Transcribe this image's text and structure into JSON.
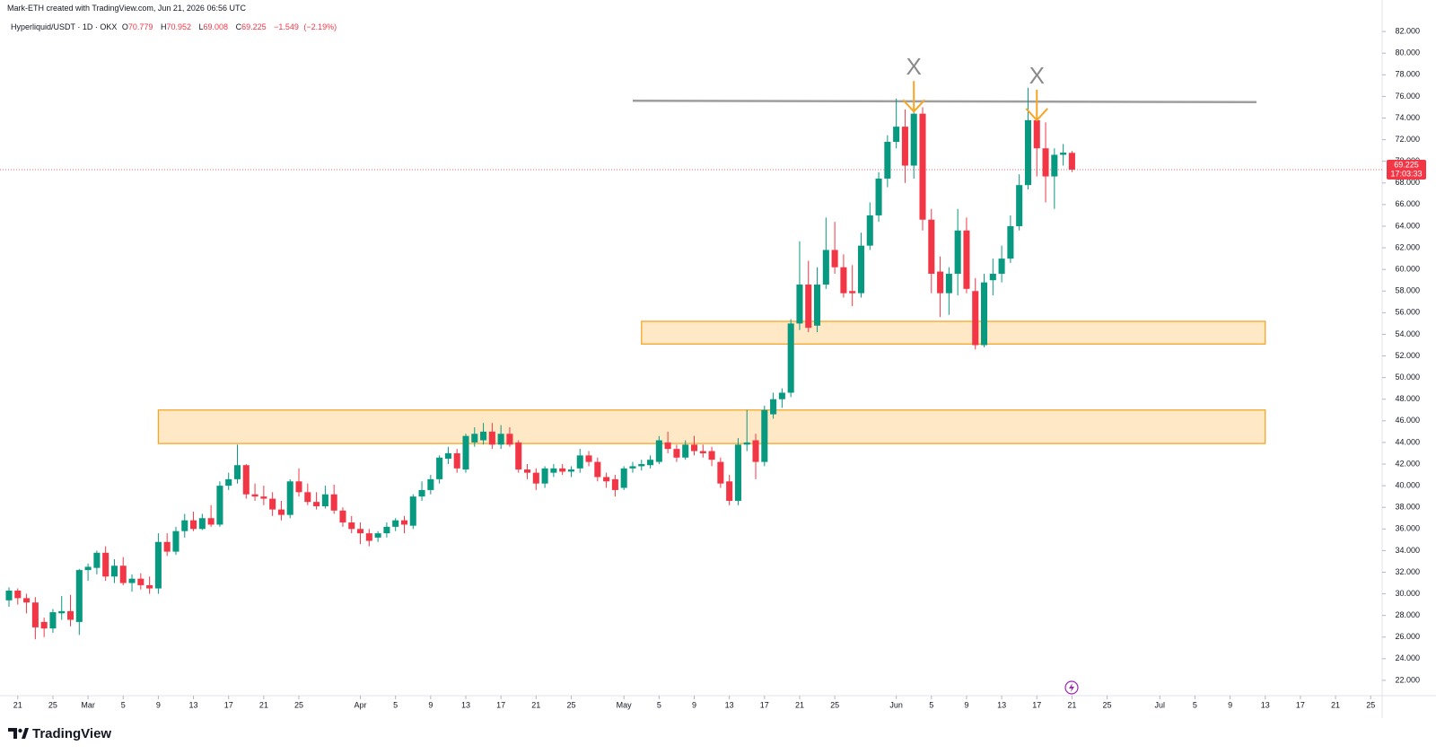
{
  "credit": "Mark-ETH created with TradingView.com, Jun 21, 2026 06:56 UTC",
  "brand": "TradingView",
  "chart_data": {
    "type": "candlestick",
    "title": "Hyperliquid/USDT · 1D · OKX",
    "ohlc_labels": [
      "O",
      "H",
      "L",
      "C"
    ],
    "change": "−1.549",
    "change_percent": "(−2.19%)",
    "countdown": "17:03:33",
    "up_color": "#089981",
    "down_color": "#f23645",
    "x": [
      "2026-02-20",
      "2026-02-21",
      "2026-02-22",
      "2026-02-23",
      "2026-02-24",
      "2026-02-25",
      "2026-02-26",
      "2026-02-27",
      "2026-02-28",
      "2026-03-01",
      "2026-03-02",
      "2026-03-03",
      "2026-03-04",
      "2026-03-05",
      "2026-03-06",
      "2026-03-07",
      "2026-03-08",
      "2026-03-09",
      "2026-03-10",
      "2026-03-11",
      "2026-03-12",
      "2026-03-13",
      "2026-03-14",
      "2026-03-15",
      "2026-03-16",
      "2026-03-17",
      "2026-03-18",
      "2026-03-19",
      "2026-03-20",
      "2026-03-21",
      "2026-03-22",
      "2026-03-23",
      "2026-03-24",
      "2026-03-25",
      "2026-03-26",
      "2026-03-27",
      "2026-03-28",
      "2026-03-29",
      "2026-03-30",
      "2026-03-31",
      "2026-04-01",
      "2026-04-02",
      "2026-04-03",
      "2026-04-04",
      "2026-04-05",
      "2026-04-06",
      "2026-04-07",
      "2026-04-08",
      "2026-04-09",
      "2026-04-10",
      "2026-04-11",
      "2026-04-12",
      "2026-04-13",
      "2026-04-14",
      "2026-04-15",
      "2026-04-16",
      "2026-04-17",
      "2026-04-18",
      "2026-04-19",
      "2026-04-20",
      "2026-04-21",
      "2026-04-22",
      "2026-04-23",
      "2026-04-24",
      "2026-04-25",
      "2026-04-26",
      "2026-04-27",
      "2026-04-28",
      "2026-04-29",
      "2026-04-30",
      "2026-05-01",
      "2026-05-02",
      "2026-05-03",
      "2026-05-04",
      "2026-05-05",
      "2026-05-06",
      "2026-05-07",
      "2026-05-08",
      "2026-05-09",
      "2026-05-10",
      "2026-05-11",
      "2026-05-12",
      "2026-05-13",
      "2026-05-14",
      "2026-05-15",
      "2026-05-16",
      "2026-05-17",
      "2026-05-18",
      "2026-05-19",
      "2026-05-20",
      "2026-05-21",
      "2026-05-22",
      "2026-05-23",
      "2026-05-24",
      "2026-05-25",
      "2026-05-26",
      "2026-05-27",
      "2026-05-28",
      "2026-05-29",
      "2026-05-30",
      "2026-05-31",
      "2026-06-01",
      "2026-06-02",
      "2026-06-03",
      "2026-06-04",
      "2026-06-05",
      "2026-06-06",
      "2026-06-07",
      "2026-06-08",
      "2026-06-09",
      "2026-06-10",
      "2026-06-11",
      "2026-06-12",
      "2026-06-13",
      "2026-06-14",
      "2026-06-15",
      "2026-06-16",
      "2026-06-17",
      "2026-06-18",
      "2026-06-19",
      "2026-06-20",
      "2026-06-21"
    ],
    "open": [
      29.4,
      30.3,
      29.6,
      29.2,
      27.4,
      26.8,
      28.2,
      28.4,
      27.4,
      32.2,
      32.4,
      33.8,
      31.6,
      32.6,
      31.0,
      31.4,
      30.8,
      30.5,
      34.8,
      33.9,
      35.8,
      36.8,
      36.0,
      37.0,
      36.4,
      40.0,
      40.6,
      41.9,
      39.2,
      39.0,
      38.8,
      37.8,
      37.3,
      40.4,
      39.4,
      38.5,
      38.1,
      39.2,
      37.7,
      36.6,
      36.0,
      35.6,
      35.2,
      35.6,
      36.2,
      36.8,
      36.3,
      39.0,
      39.6,
      40.6,
      42.5,
      43.0,
      41.5,
      44.0,
      44.2,
      45.0,
      43.8,
      44.8,
      44.0,
      41.5,
      41.2,
      40.2,
      41.2,
      41.6,
      41.3,
      41.6,
      42.8,
      42.2,
      40.8,
      40.6,
      39.8,
      41.6,
      41.8,
      41.9,
      42.2,
      44.0,
      43.4,
      42.6,
      43.8,
      43.2,
      43.2,
      42.2,
      40.4,
      38.6,
      43.8,
      44.2,
      42.2,
      46.6,
      48.0,
      48.6,
      55.0,
      58.6,
      54.8,
      58.6,
      61.8,
      60.2,
      58.0,
      57.8,
      62.2,
      65.0,
      68.4,
      71.8,
      73.2,
      69.6,
      74.4,
      64.6,
      59.8,
      57.8,
      59.6,
      63.6,
      58.0,
      53.0,
      59.0,
      59.6,
      61.0,
      64.0,
      67.8,
      73.8,
      71.2,
      68.6,
      70.6,
      70.779
    ],
    "high": [
      30.6,
      30.5,
      30.0,
      29.7,
      27.8,
      28.6,
      29.8,
      29.9,
      32.3,
      32.8,
      34.0,
      34.4,
      33.2,
      33.4,
      31.8,
      31.9,
      31.6,
      35.6,
      35.6,
      36.2,
      37.4,
      37.6,
      37.4,
      38.2,
      40.4,
      41.2,
      43.8,
      42.0,
      40.2,
      40.0,
      39.4,
      38.6,
      40.6,
      41.6,
      40.2,
      39.4,
      40.0,
      40.1,
      38.0,
      37.2,
      36.6,
      36.0,
      35.8,
      36.6,
      37.0,
      37.2,
      39.2,
      40.4,
      41.0,
      42.8,
      43.6,
      43.4,
      44.8,
      45.4,
      45.8,
      45.8,
      45.6,
      45.4,
      44.2,
      42.0,
      41.6,
      41.8,
      42.0,
      42.0,
      41.8,
      43.4,
      43.2,
      42.6,
      41.2,
      41.0,
      41.8,
      42.2,
      42.4,
      42.8,
      44.6,
      45.0,
      43.8,
      44.2,
      44.6,
      43.8,
      43.6,
      42.6,
      41.0,
      44.4,
      47.0,
      44.8,
      47.4,
      48.6,
      49.0,
      55.4,
      62.6,
      60.8,
      60.2,
      64.8,
      64.4,
      61.4,
      60.4,
      63.4,
      66.2,
      69.0,
      72.4,
      75.8,
      74.8,
      75.4,
      75.0,
      65.6,
      61.2,
      60.2,
      65.6,
      64.8,
      59.2,
      59.6,
      61.0,
      62.2,
      65.0,
      68.8,
      76.8,
      74.6,
      73.6,
      71.2,
      71.6,
      70.952
    ],
    "low": [
      28.8,
      29.0,
      28.2,
      25.8,
      26.0,
      26.4,
      27.6,
      27.0,
      26.2,
      31.2,
      31.8,
      31.2,
      31.0,
      30.8,
      30.2,
      30.4,
      30.0,
      30.0,
      33.5,
      33.6,
      35.2,
      35.8,
      35.9,
      36.2,
      36.2,
      39.6,
      40.2,
      38.8,
      38.6,
      38.2,
      37.2,
      36.8,
      37.0,
      39.0,
      38.2,
      37.8,
      37.9,
      37.4,
      36.2,
      35.6,
      34.6,
      34.4,
      34.8,
      35.2,
      35.8,
      35.6,
      36.0,
      38.6,
      39.2,
      40.2,
      42.0,
      41.2,
      41.2,
      43.6,
      43.8,
      43.4,
      43.4,
      43.6,
      41.2,
      40.6,
      39.6,
      39.8,
      40.8,
      41.0,
      40.8,
      41.2,
      41.8,
      40.4,
      39.8,
      39.0,
      39.6,
      41.2,
      41.4,
      41.6,
      42.0,
      43.0,
      42.2,
      42.4,
      42.8,
      42.6,
      41.8,
      39.8,
      38.2,
      38.2,
      43.2,
      40.6,
      41.8,
      46.2,
      47.2,
      48.2,
      54.4,
      54.2,
      54.2,
      58.2,
      59.6,
      57.4,
      56.6,
      57.4,
      61.8,
      64.4,
      67.6,
      71.2,
      68.0,
      68.4,
      63.6,
      57.8,
      55.6,
      55.8,
      57.6,
      57.8,
      52.6,
      52.8,
      57.6,
      58.8,
      60.6,
      63.6,
      67.4,
      68.6,
      66.2,
      65.6,
      69.6,
      69.008
    ],
    "close": [
      30.3,
      29.6,
      29.2,
      26.9,
      26.8,
      28.3,
      28.4,
      27.6,
      32.2,
      32.5,
      33.8,
      31.6,
      32.6,
      31.0,
      31.4,
      30.8,
      30.5,
      34.8,
      33.9,
      35.8,
      36.8,
      36.0,
      37.0,
      36.4,
      40.0,
      40.6,
      41.9,
      39.2,
      39.0,
      38.8,
      37.8,
      37.3,
      40.4,
      39.4,
      38.5,
      38.1,
      39.2,
      37.7,
      36.6,
      36.0,
      35.6,
      34.9,
      35.6,
      36.2,
      36.8,
      36.4,
      39.0,
      39.6,
      40.6,
      42.6,
      43.0,
      41.6,
      44.6,
      44.8,
      45.0,
      43.8,
      44.8,
      43.8,
      41.5,
      41.2,
      40.2,
      41.6,
      41.6,
      41.3,
      41.5,
      42.8,
      42.2,
      40.8,
      40.4,
      39.6,
      41.6,
      41.8,
      42.0,
      42.4,
      44.2,
      43.4,
      42.6,
      43.8,
      43.2,
      43.0,
      42.4,
      40.2,
      38.6,
      43.8,
      44.0,
      42.2,
      47.0,
      48.0,
      48.6,
      55.0,
      58.6,
      54.6,
      58.6,
      61.8,
      60.2,
      57.8,
      57.8,
      62.2,
      65.0,
      68.4,
      71.8,
      73.2,
      69.6,
      74.4,
      64.6,
      59.6,
      57.8,
      59.6,
      63.6,
      58.2,
      53.0,
      58.8,
      59.6,
      61.0,
      64.0,
      67.8,
      73.8,
      71.2,
      68.6,
      70.6,
      70.8,
      69.225
    ],
    "xlim": [
      "2026-02-20",
      "2026-07-26"
    ],
    "xticks": [
      {
        "value": "2026-02-21",
        "label": "21"
      },
      {
        "value": "2026-02-25",
        "label": "25"
      },
      {
        "value": "2026-03-01",
        "label": "Mar"
      },
      {
        "value": "2026-03-05",
        "label": "5"
      },
      {
        "value": "2026-03-09",
        "label": "9"
      },
      {
        "value": "2026-03-13",
        "label": "13"
      },
      {
        "value": "2026-03-17",
        "label": "17"
      },
      {
        "value": "2026-03-21",
        "label": "21"
      },
      {
        "value": "2026-03-25",
        "label": "25"
      },
      {
        "value": "2026-04-01",
        "label": "Apr"
      },
      {
        "value": "2026-04-05",
        "label": "5"
      },
      {
        "value": "2026-04-09",
        "label": "9"
      },
      {
        "value": "2026-04-13",
        "label": "13"
      },
      {
        "value": "2026-04-17",
        "label": "17"
      },
      {
        "value": "2026-04-21",
        "label": "21"
      },
      {
        "value": "2026-04-25",
        "label": "25"
      },
      {
        "value": "2026-05-01",
        "label": "May"
      },
      {
        "value": "2026-05-05",
        "label": "5"
      },
      {
        "value": "2026-05-09",
        "label": "9"
      },
      {
        "value": "2026-05-13",
        "label": "13"
      },
      {
        "value": "2026-05-17",
        "label": "17"
      },
      {
        "value": "2026-05-21",
        "label": "21"
      },
      {
        "value": "2026-05-25",
        "label": "25"
      },
      {
        "value": "2026-06-01",
        "label": "Jun"
      },
      {
        "value": "2026-06-05",
        "label": "5"
      },
      {
        "value": "2026-06-09",
        "label": "9"
      },
      {
        "value": "2026-06-13",
        "label": "13"
      },
      {
        "value": "2026-06-17",
        "label": "17"
      },
      {
        "value": "2026-06-21",
        "label": "21"
      },
      {
        "value": "2026-06-25",
        "label": "25"
      },
      {
        "value": "2026-07-01",
        "label": "Jul"
      },
      {
        "value": "2026-07-05",
        "label": "5"
      },
      {
        "value": "2026-07-09",
        "label": "9"
      },
      {
        "value": "2026-07-13",
        "label": "13"
      },
      {
        "value": "2026-07-17",
        "label": "17"
      },
      {
        "value": "2026-07-21",
        "label": "21"
      },
      {
        "value": "2026-07-25",
        "label": "25"
      }
    ],
    "ylim": [
      21,
      84.5
    ],
    "yticks": [
      {
        "value": 22,
        "label": "22.000"
      },
      {
        "value": 24,
        "label": "24.000"
      },
      {
        "value": 26,
        "label": "26.000"
      },
      {
        "value": 28,
        "label": "28.000"
      },
      {
        "value": 30,
        "label": "30.000"
      },
      {
        "value": 32,
        "label": "32.000"
      },
      {
        "value": 34,
        "label": "34.000"
      },
      {
        "value": 36,
        "label": "36.000"
      },
      {
        "value": 38,
        "label": "38.000"
      },
      {
        "value": 40,
        "label": "40.000"
      },
      {
        "value": 42,
        "label": "42.000"
      },
      {
        "value": 44,
        "label": "44.000"
      },
      {
        "value": 46,
        "label": "46.000"
      },
      {
        "value": 48,
        "label": "48.000"
      },
      {
        "value": 50,
        "label": "50.000"
      },
      {
        "value": 52,
        "label": "52.000"
      },
      {
        "value": 54,
        "label": "54.000"
      },
      {
        "value": 56,
        "label": "56.000"
      },
      {
        "value": 58,
        "label": "58.000"
      },
      {
        "value": 60,
        "label": "60.000"
      },
      {
        "value": 62,
        "label": "62.000"
      },
      {
        "value": 64,
        "label": "64.000"
      },
      {
        "value": 66,
        "label": "66.000"
      },
      {
        "value": 68,
        "label": "68.000"
      },
      {
        "value": 70,
        "label": "70.000"
      },
      {
        "value": 72,
        "label": "72.000"
      },
      {
        "value": 74,
        "label": "74.000"
      },
      {
        "value": 76,
        "label": "76.000"
      },
      {
        "value": 78,
        "label": "78.000"
      },
      {
        "value": 80,
        "label": "80.000"
      },
      {
        "value": 82,
        "label": "82.000"
      }
    ],
    "grid": false,
    "resistance": {
      "price": 75.6,
      "from": "2026-05-02",
      "to": "2026-07-12",
      "color": "#9e9e9e"
    },
    "zones": [
      {
        "top": 55.2,
        "bottom": 53.1,
        "from": "2026-05-03",
        "to": "2026-07-13"
      },
      {
        "top": 47.0,
        "bottom": 43.9,
        "from": "2026-03-09",
        "to": "2026-07-13"
      }
    ],
    "zone_color": "#ffe0b2",
    "zone_border": "#f5a623",
    "markers": [
      {
        "label": "X",
        "date": "2026-06-03",
        "price": 74.6
      },
      {
        "label": "X",
        "date": "2026-06-17",
        "price": 73.8
      }
    ],
    "marker_color": "#f5a623"
  }
}
